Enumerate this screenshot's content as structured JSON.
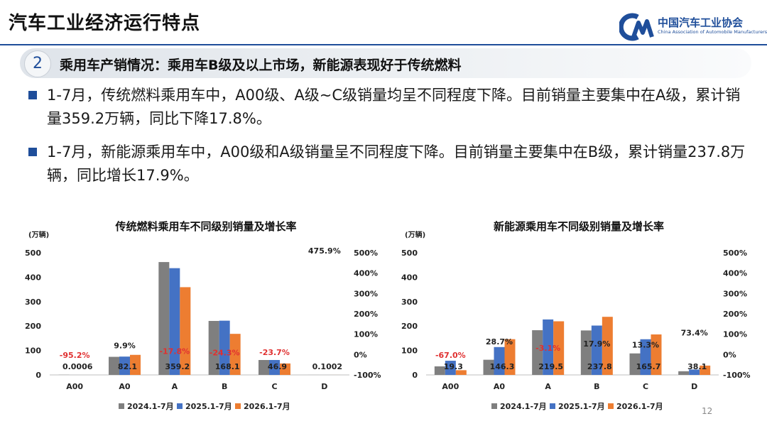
{
  "header": {
    "title": "汽车工业经济运行特点",
    "logo_cn": "中国汽车工业协会",
    "logo_en": "China Association of Automobile Manufacturers"
  },
  "section": {
    "number": "2",
    "title": "乘用车产销情况：乘用车B级及以上市场，新能源表现好于传统燃料"
  },
  "bullets": [
    "1-7月，传统燃料乘用车中，A00级、A级~C级销量均呈不同程度下降。目前销量主要集中在A级，累计销量359.2万辆，同比下降17.8%。",
    "1-7月，新能源乘用车中，A00级和A级销量呈不同程度下降。目前销量主要集中在B级，累计销量237.8万辆，同比增长17.9%。"
  ],
  "page_number": "12",
  "colors": {
    "s2024": "#7f7f7f",
    "s2025": "#4472c4",
    "s2026": "#ed7d31",
    "rate": "#e03030",
    "brand": "#1f4e9a"
  },
  "chart_data": [
    {
      "type": "bar",
      "title": "传统燃料乘用车不同级别销量及增长率",
      "ylabel": "(万辆)",
      "ylim": [
        0,
        500
      ],
      "y2lim": [
        -100,
        500
      ],
      "yticks": [
        "0",
        "100",
        "200",
        "300",
        "400",
        "500"
      ],
      "y2ticks": [
        "-100%",
        "0%",
        "100%",
        "200%",
        "300%",
        "400%",
        "500%"
      ],
      "categories": [
        "A00",
        "A0",
        "A",
        "B",
        "C",
        "D"
      ],
      "series": [
        {
          "name": "2024.1-7月",
          "values": [
            0.5,
            74,
            462,
            221,
            61,
            0.1
          ]
        },
        {
          "name": "2025.1-7月",
          "values": [
            0.01,
            75,
            437,
            222,
            61,
            0.02
          ]
        },
        {
          "name": "2026.1-7月",
          "values": [
            0.0006,
            82.1,
            359.2,
            168.1,
            46.9,
            0.1002
          ]
        }
      ],
      "value_labels": [
        "0.0006",
        "82.1",
        "359.2",
        "168.1",
        "46.9",
        "0.1002"
      ],
      "growth": [
        "-95.2%",
        "9.9%",
        "-17.8%",
        "-24.3%",
        "-23.7%",
        "475.9%"
      ],
      "growth_values": [
        -95.2,
        9.9,
        -17.8,
        -24.3,
        -23.7,
        475.9
      ],
      "legend_position": "bottom"
    },
    {
      "type": "bar",
      "title": "新能源乘用车不同级别销量及增长率",
      "ylabel": "(万辆)",
      "ylim": [
        0,
        500
      ],
      "y2lim": [
        -100,
        500
      ],
      "yticks": [
        "0",
        "100",
        "200",
        "300",
        "400",
        "500"
      ],
      "y2ticks": [
        "-100%",
        "0%",
        "100%",
        "200%",
        "300%",
        "400%",
        "500%"
      ],
      "categories": [
        "A00",
        "A0",
        "A",
        "B",
        "C",
        "D"
      ],
      "series": [
        {
          "name": "2024.1-7月",
          "values": [
            35,
            62,
            183,
            182,
            88,
            15
          ]
        },
        {
          "name": "2025.1-7月",
          "values": [
            58,
            114,
            227,
            202,
            146,
            22
          ]
        },
        {
          "name": "2026.1-7月",
          "values": [
            19.3,
            146.3,
            219.5,
            237.8,
            165.7,
            38.1
          ]
        }
      ],
      "value_labels": [
        "19.3",
        "146.3",
        "219.5",
        "237.8",
        "165.7",
        "38.1"
      ],
      "growth": [
        "-67.0%",
        "28.7%",
        "-3.1%",
        "17.9%",
        "13.3%",
        "73.4%"
      ],
      "growth_values": [
        -67.0,
        28.7,
        -3.1,
        17.9,
        13.3,
        73.4
      ],
      "legend_position": "bottom"
    }
  ]
}
